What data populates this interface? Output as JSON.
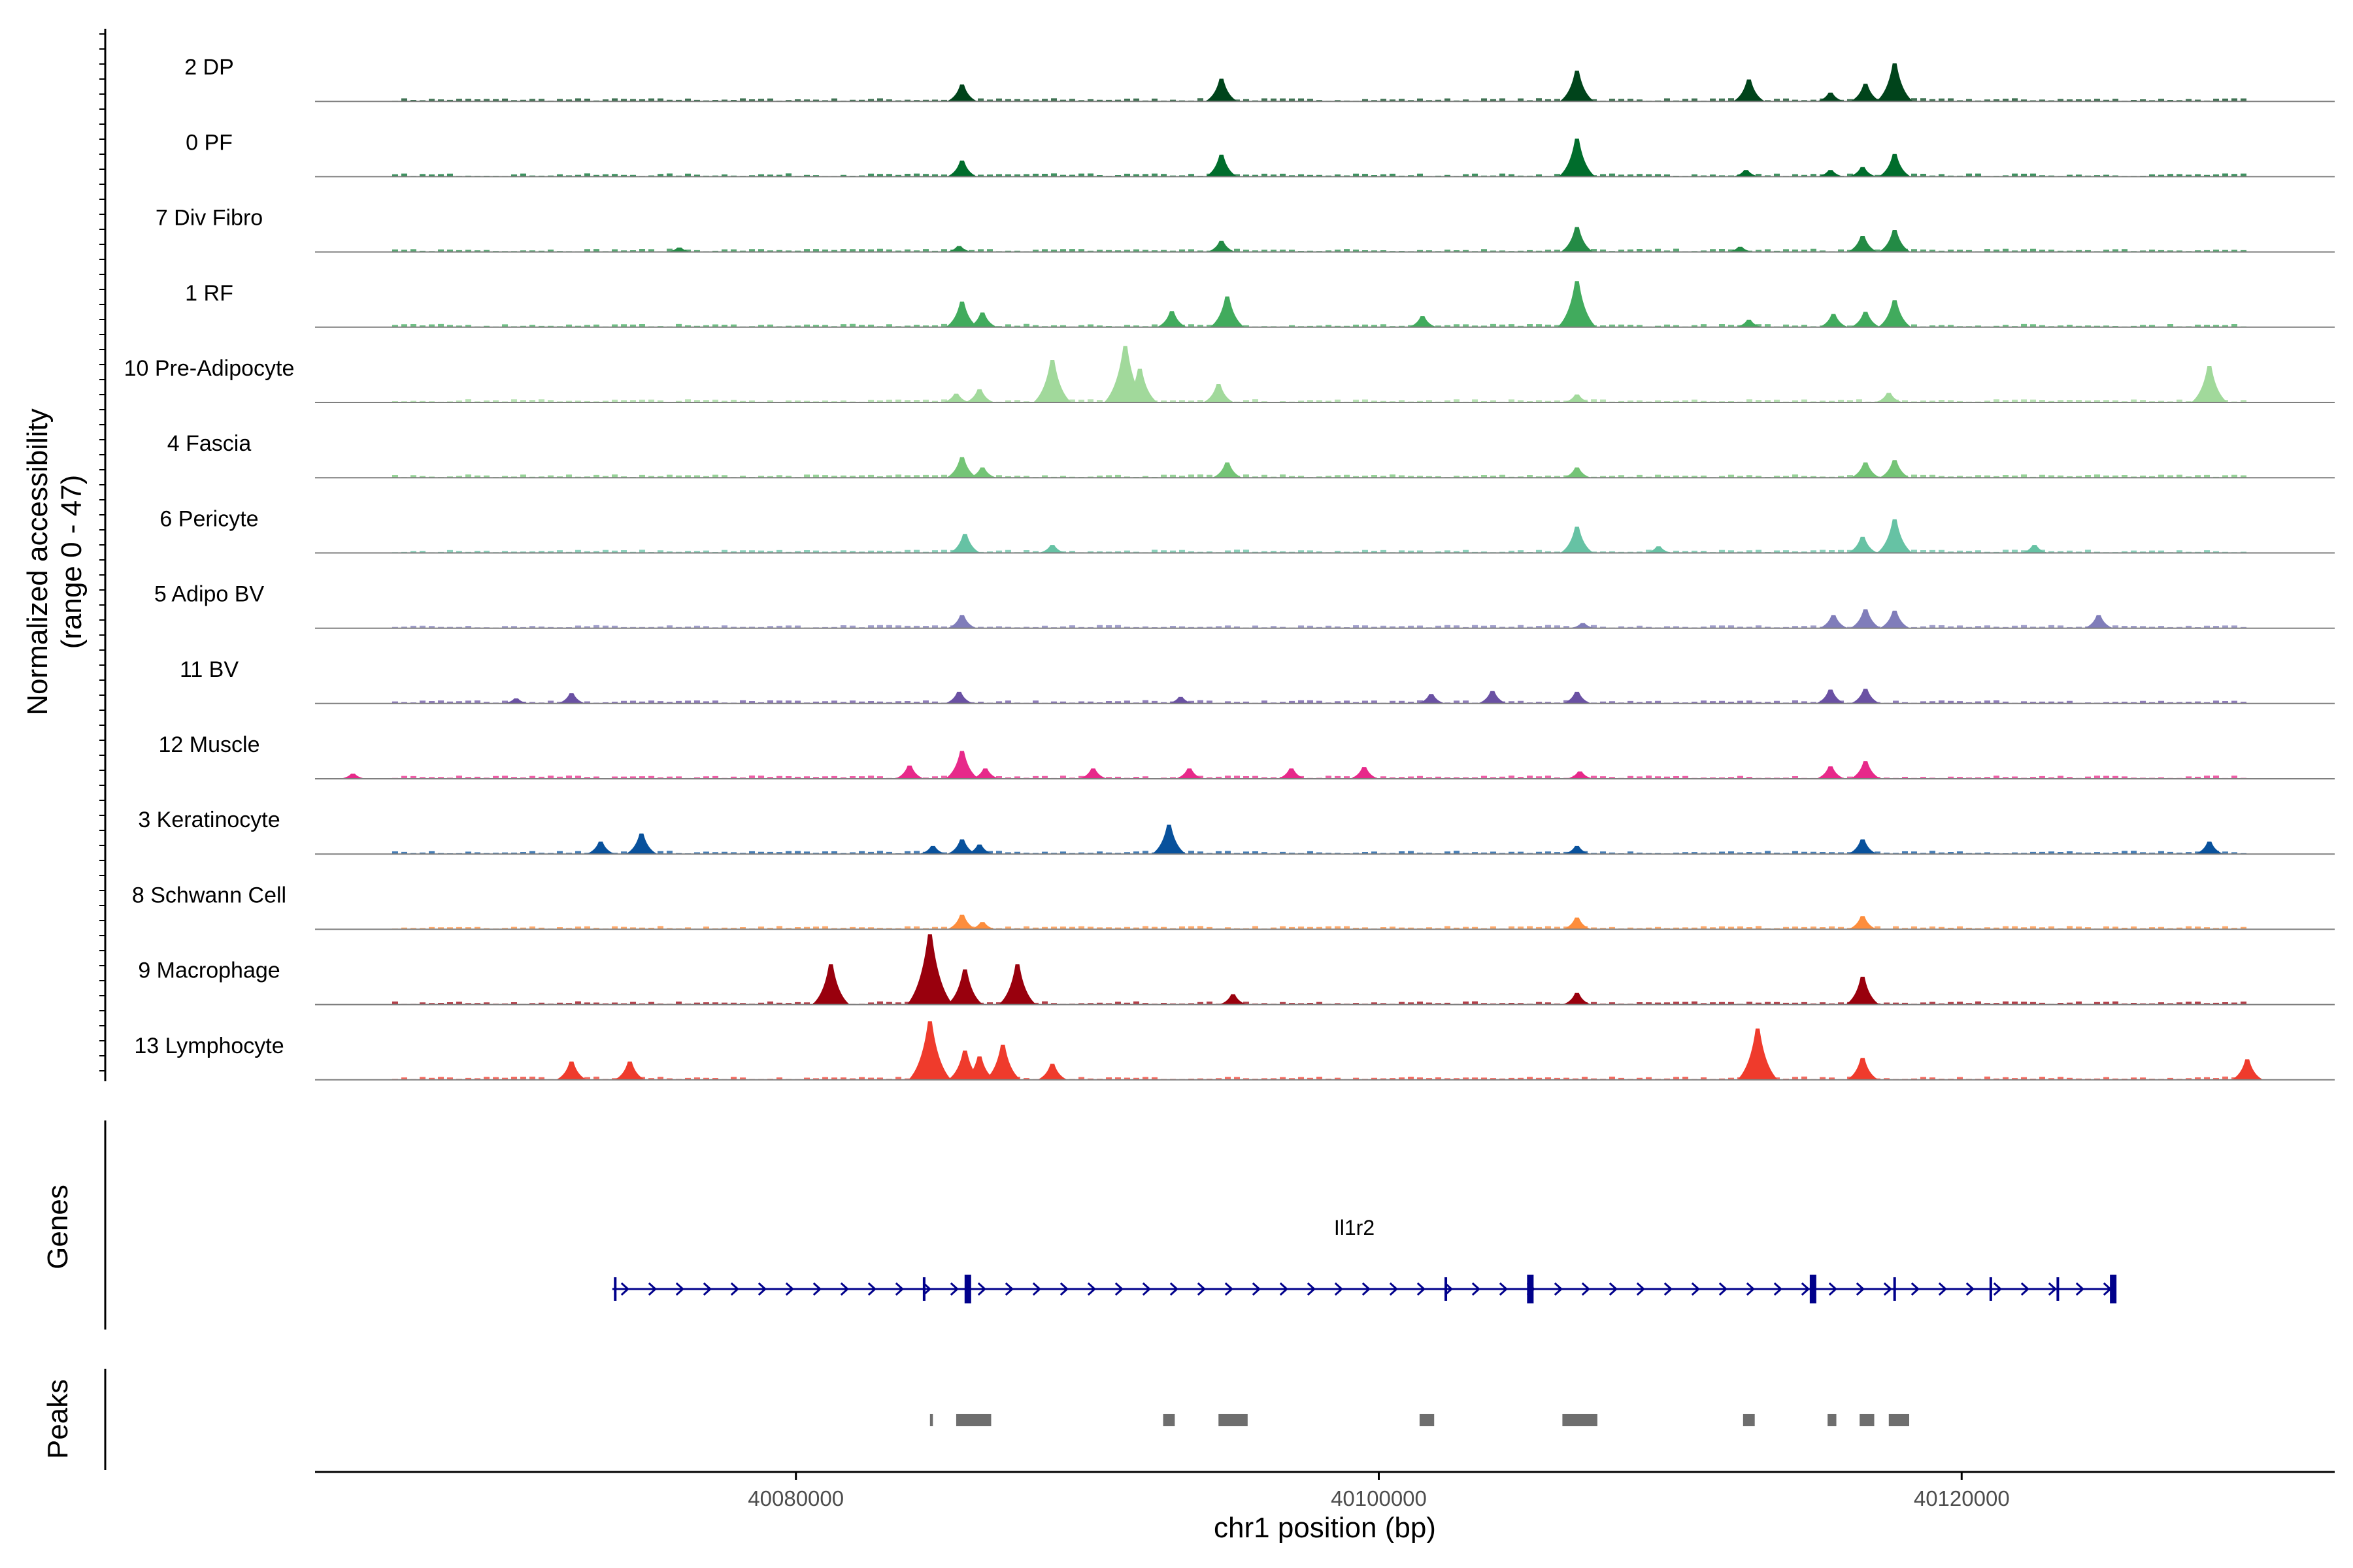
{
  "chart_data": {
    "type": "area",
    "subtype": "genome-coverage-plot",
    "ylabel_line1": "Normalized accessibility",
    "ylabel_line2": "(range 0 - 47)",
    "yrange": [
      0,
      47
    ],
    "xlabel": "chr1 position (bp)",
    "xlim": [
      40063500,
      40132800
    ],
    "xticks": [
      40080000,
      40100000,
      40120000
    ],
    "xtick_labels": [
      "40080000",
      "40100000",
      "40120000"
    ],
    "tracks": [
      {
        "name": "2 DP",
        "color": "#00441b",
        "peaks": [
          [
            40085700,
            0.23
          ],
          [
            40094600,
            0.31
          ],
          [
            40106800,
            0.42
          ],
          [
            40112700,
            0.3
          ],
          [
            40115500,
            0.12
          ],
          [
            40116700,
            0.24
          ],
          [
            40117700,
            0.52
          ]
        ]
      },
      {
        "name": "0 PF",
        "color": "#006d2c",
        "peaks": [
          [
            40085700,
            0.22
          ],
          [
            40094600,
            0.3
          ],
          [
            40106800,
            0.52
          ],
          [
            40112600,
            0.09
          ],
          [
            40115500,
            0.09
          ],
          [
            40116600,
            0.13
          ],
          [
            40117700,
            0.31
          ]
        ]
      },
      {
        "name": "7 Div Fibro",
        "color": "#238b45",
        "peaks": [
          [
            40076000,
            0.06
          ],
          [
            40085600,
            0.08
          ],
          [
            40094600,
            0.15
          ],
          [
            40106800,
            0.34
          ],
          [
            40112400,
            0.07
          ],
          [
            40116600,
            0.22
          ],
          [
            40117700,
            0.3
          ]
        ]
      },
      {
        "name": "1 RF",
        "color": "#41ab5d",
        "peaks": [
          [
            40085700,
            0.35
          ],
          [
            40086400,
            0.2
          ],
          [
            40092900,
            0.22
          ],
          [
            40094800,
            0.42
          ],
          [
            40101500,
            0.15
          ],
          [
            40106800,
            0.63
          ],
          [
            40112700,
            0.1
          ],
          [
            40115600,
            0.18
          ],
          [
            40116700,
            0.21
          ],
          [
            40117700,
            0.37
          ]
        ]
      },
      {
        "name": "10 Pre-Adipocyte",
        "color": "#a1d99b",
        "peaks": [
          [
            40085500,
            0.12
          ],
          [
            40086300,
            0.18
          ],
          [
            40088800,
            0.58
          ],
          [
            40091300,
            0.77
          ],
          [
            40091800,
            0.46
          ],
          [
            40094500,
            0.25
          ],
          [
            40106800,
            0.11
          ],
          [
            40117500,
            0.13
          ],
          [
            40128500,
            0.5
          ]
        ]
      },
      {
        "name": "4 Fascia",
        "color": "#74c476",
        "peaks": [
          [
            40085700,
            0.28
          ],
          [
            40086400,
            0.14
          ],
          [
            40094800,
            0.21
          ],
          [
            40106800,
            0.14
          ],
          [
            40116700,
            0.21
          ],
          [
            40117700,
            0.24
          ]
        ]
      },
      {
        "name": "6 Pericyte",
        "color": "#66c2a4",
        "peaks": [
          [
            40085800,
            0.26
          ],
          [
            40088800,
            0.11
          ],
          [
            40106800,
            0.36
          ],
          [
            40109600,
            0.09
          ],
          [
            40116600,
            0.22
          ],
          [
            40117700,
            0.46
          ],
          [
            40122500,
            0.11
          ]
        ]
      },
      {
        "name": "5 Adipo BV",
        "color": "#807dba",
        "peaks": [
          [
            40085700,
            0.18
          ],
          [
            40107000,
            0.07
          ],
          [
            40115600,
            0.18
          ],
          [
            40116700,
            0.26
          ],
          [
            40117700,
            0.24
          ],
          [
            40124700,
            0.18
          ]
        ]
      },
      {
        "name": "11 BV",
        "color": "#6a51a3",
        "peaks": [
          [
            40070400,
            0.07
          ],
          [
            40072300,
            0.14
          ],
          [
            40085600,
            0.16
          ],
          [
            40093200,
            0.09
          ],
          [
            40101800,
            0.13
          ],
          [
            40103900,
            0.17
          ],
          [
            40106800,
            0.16
          ],
          [
            40115500,
            0.19
          ],
          [
            40116700,
            0.2
          ]
        ]
      },
      {
        "name": "12 Muscle",
        "color": "#e7298a",
        "peaks": [
          [
            40064800,
            0.07
          ],
          [
            40083900,
            0.18
          ],
          [
            40085700,
            0.38
          ],
          [
            40086500,
            0.14
          ],
          [
            40090200,
            0.14
          ],
          [
            40093500,
            0.14
          ],
          [
            40097000,
            0.14
          ],
          [
            40099500,
            0.16
          ],
          [
            40106900,
            0.1
          ],
          [
            40115500,
            0.17
          ],
          [
            40116700,
            0.24
          ]
        ]
      },
      {
        "name": "3 Keratinocyte",
        "color": "#08519c",
        "peaks": [
          [
            40073300,
            0.17
          ],
          [
            40074700,
            0.28
          ],
          [
            40084700,
            0.11
          ],
          [
            40085700,
            0.2
          ],
          [
            40086300,
            0.13
          ],
          [
            40092800,
            0.4
          ],
          [
            40106800,
            0.11
          ],
          [
            40116600,
            0.2
          ],
          [
            40128500,
            0.17
          ]
        ]
      },
      {
        "name": "8 Schwann Cell",
        "color": "#fd8d3c",
        "peaks": [
          [
            40085700,
            0.2
          ],
          [
            40086400,
            0.1
          ],
          [
            40106800,
            0.16
          ],
          [
            40116600,
            0.18
          ]
        ]
      },
      {
        "name": "9 Macrophage",
        "color": "#99000d",
        "peaks": [
          [
            40081200,
            0.55
          ],
          [
            40084600,
            0.96
          ],
          [
            40085800,
            0.48
          ],
          [
            40087600,
            0.55
          ],
          [
            40095000,
            0.14
          ],
          [
            40106800,
            0.16
          ],
          [
            40116600,
            0.38
          ]
        ]
      },
      {
        "name": "13 Lymphocyte",
        "color": "#ef3b2c",
        "peaks": [
          [
            40072300,
            0.25
          ],
          [
            40074300,
            0.25
          ],
          [
            40084600,
            0.8
          ],
          [
            40085800,
            0.4
          ],
          [
            40086300,
            0.32
          ],
          [
            40087100,
            0.48
          ],
          [
            40088800,
            0.22
          ],
          [
            40113000,
            0.7
          ],
          [
            40116600,
            0.3
          ],
          [
            40129800,
            0.28
          ]
        ]
      }
    ],
    "genes": {
      "label": "Genes",
      "name": "Il1r2",
      "color": "#00008b",
      "start": 40073700,
      "end": 40125300,
      "exons": [
        40073800,
        40084400,
        40085900,
        40102300,
        40105200,
        40114900,
        40117700,
        40121000,
        40123300,
        40125200
      ],
      "thick_exons": [
        40085900,
        40105200,
        40114900,
        40125200
      ]
    },
    "peaks_track": {
      "label": "Peaks",
      "color": "#6e6e6e",
      "regions": [
        [
          40084600,
          40084700
        ],
        [
          40085500,
          40086700
        ],
        [
          40092600,
          40093000
        ],
        [
          40094500,
          40095500
        ],
        [
          40101400,
          40101900
        ],
        [
          40106300,
          40107500
        ],
        [
          40112500,
          40112900
        ],
        [
          40115400,
          40115700
        ],
        [
          40116500,
          40117000
        ],
        [
          40117500,
          40118200
        ]
      ]
    }
  }
}
